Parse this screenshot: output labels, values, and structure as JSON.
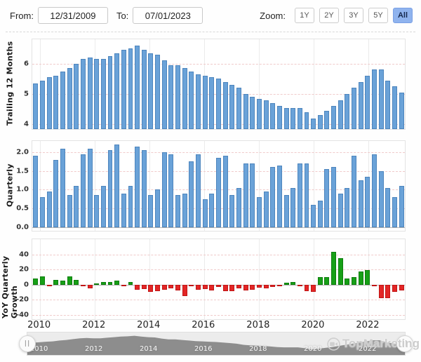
{
  "toolbar": {
    "from_label": "From:",
    "from_value": "12/31/2009",
    "to_label": "To:",
    "to_value": "07/01/2023",
    "zoom_label": "Zoom:",
    "zoom_buttons": [
      {
        "label": "1Y",
        "active": false
      },
      {
        "label": "2Y",
        "active": false
      },
      {
        "label": "3Y",
        "active": false
      },
      {
        "label": "5Y",
        "active": false
      },
      {
        "label": "All",
        "active": true
      }
    ],
    "active_zoom_color": "#8fb3ee"
  },
  "chart_data": [
    {
      "type": "bar",
      "title": "Trailing 12 Months",
      "ylabel": "Trailing 12 Months",
      "ylim": [
        3.85,
        6.8
      ],
      "grid": true,
      "bar_color": "#6aa2d8",
      "bar_border": "#4d85bd",
      "yticks": [
        {
          "label": "6",
          "value": 6
        },
        {
          "label": "5",
          "value": 5
        },
        {
          "label": "4",
          "value": 4
        }
      ],
      "x_start": "2009-Q4",
      "x_end": "2023-Q2",
      "values": [
        5.35,
        5.45,
        5.55,
        5.6,
        5.75,
        5.85,
        6.0,
        6.15,
        6.2,
        6.15,
        6.15,
        6.25,
        6.35,
        6.45,
        6.5,
        6.6,
        6.45,
        6.35,
        6.3,
        6.1,
        5.95,
        5.95,
        5.85,
        5.75,
        5.65,
        5.6,
        5.55,
        5.5,
        5.4,
        5.3,
        5.2,
        5.0,
        4.9,
        4.85,
        4.8,
        4.7,
        4.6,
        4.55,
        4.55,
        4.55,
        4.4,
        4.2,
        4.3,
        4.45,
        4.6,
        4.8,
        5.0,
        5.2,
        5.4,
        5.6,
        5.8,
        5.8,
        5.45,
        5.25,
        5.05
      ]
    },
    {
      "type": "bar",
      "title": "Quarterly",
      "ylabel": "Quarterly",
      "ylim": [
        -0.1,
        2.3
      ],
      "grid": true,
      "bar_color": "#6aa2d8",
      "bar_border": "#4d85bd",
      "yticks": [
        {
          "label": "2.0",
          "value": 2.0
        },
        {
          "label": "1.5",
          "value": 1.5
        },
        {
          "label": "1.0",
          "value": 1.0
        },
        {
          "label": "0.5",
          "value": 0.5
        },
        {
          "label": "0.0",
          "value": 0.0
        }
      ],
      "x_start": "2009-Q4",
      "x_end": "2023-Q2",
      "values": [
        1.9,
        0.8,
        0.95,
        1.8,
        2.1,
        0.85,
        1.1,
        1.95,
        2.1,
        0.85,
        1.1,
        2.05,
        2.2,
        0.9,
        1.1,
        2.15,
        2.05,
        0.85,
        1.0,
        2.0,
        1.95,
        0.85,
        0.9,
        1.75,
        1.95,
        0.75,
        0.9,
        1.85,
        1.9,
        0.85,
        1.05,
        1.7,
        1.7,
        0.8,
        0.95,
        1.6,
        1.65,
        0.85,
        1.05,
        1.7,
        1.7,
        0.6,
        0.7,
        1.55,
        1.6,
        0.9,
        1.05,
        1.9,
        1.25,
        1.35,
        1.95,
        1.5,
        1.05,
        0.8,
        1.1
      ]
    },
    {
      "type": "bar",
      "title": "YoY Quarterly Growth",
      "ylabel": "YoY Quarterly Growth",
      "ylim": [
        -46,
        60
      ],
      "grid": true,
      "pos_color": "#17a017",
      "pos_border": "#0d7d0d",
      "neg_color": "#e32626",
      "neg_border": "#c01515",
      "yticks": [
        {
          "label": "40",
          "value": 40
        },
        {
          "label": "20",
          "value": 20
        },
        {
          "label": "0",
          "value": 0
        },
        {
          "label": "-20",
          "value": -20
        },
        {
          "label": "-40",
          "value": -40
        }
      ],
      "x_start": "2009-Q4",
      "x_end": "2023-Q2",
      "values": [
        8,
        11,
        -2,
        6,
        5,
        11,
        6,
        -1,
        -5,
        1,
        3,
        3,
        5,
        -2,
        3,
        -7,
        -6,
        -10,
        -9,
        -7,
        -5,
        -8,
        -15,
        -2,
        -7,
        -6,
        -8,
        -3,
        -9,
        -9,
        -5,
        -8,
        -7,
        -4,
        -5,
        -3,
        -1,
        2,
        3,
        -1,
        -9,
        -10,
        10,
        10,
        43,
        35,
        8,
        10,
        17,
        19,
        -2,
        -18,
        -18,
        -10,
        -8
      ]
    }
  ],
  "x_axis": {
    "years": [
      "2010",
      "2012",
      "2014",
      "2016",
      "2018",
      "2020",
      "2022"
    ]
  },
  "navigator": {
    "years": [
      "2010",
      "2012",
      "2014",
      "2016",
      "2018",
      "2020",
      "2022"
    ],
    "handle_glyph": "||",
    "silhouette_color": "#8d8d8d",
    "track_color": "#ececec"
  },
  "watermark": {
    "text": "TopMarketing",
    "icon": "video-camera-icon"
  }
}
